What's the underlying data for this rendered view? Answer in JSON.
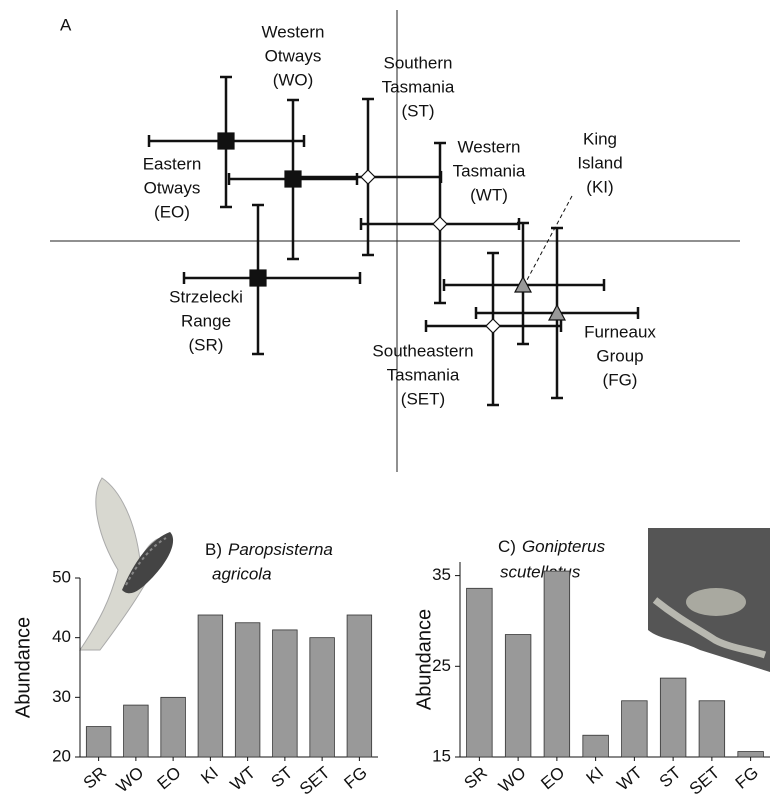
{
  "chart_data": [
    {
      "type": "scatter",
      "panel_label": "A",
      "xlim": [
        -3.47,
        3.43
      ],
      "ylim": [
        -2.31,
        2.31
      ],
      "points": [
        {
          "label_lines": [
            "Eastern",
            "Otways",
            "(EO)"
          ],
          "x": -1.71,
          "y": 1.0,
          "x_low": -2.48,
          "x_high": -0.93,
          "y_low": 0.34,
          "y_high": 1.64,
          "marker": "square",
          "color": "#111111"
        },
        {
          "label_lines": [
            "Western",
            "Otways",
            "(WO)"
          ],
          "x": -1.04,
          "y": 0.62,
          "x_low": -1.68,
          "x_high": -0.4,
          "y_low": -0.18,
          "y_high": 1.41,
          "marker": "square",
          "color": "#111111"
        },
        {
          "label_lines": [
            "Strzelecki",
            "Range",
            "(SR)"
          ],
          "x": -1.39,
          "y": -0.37,
          "x_low": -2.13,
          "x_high": -0.37,
          "y_low": -1.13,
          "y_high": 0.36,
          "marker": "square",
          "color": "#111111"
        },
        {
          "label_lines": [
            "Southern",
            "Tasmania",
            "(ST)"
          ],
          "x": -0.29,
          "y": 0.64,
          "x_low": -1.01,
          "x_high": 0.44,
          "y_low": -0.14,
          "y_high": 1.42,
          "marker": "diamond",
          "color": "#ffffff"
        },
        {
          "label_lines": [
            "Western",
            "Tasmania",
            "(WT)"
          ],
          "x": 0.43,
          "y": 0.17,
          "x_low": -0.36,
          "x_high": 1.22,
          "y_low": -0.62,
          "y_high": 0.98,
          "marker": "diamond",
          "color": "#ffffff"
        },
        {
          "label_lines": [
            "King",
            "Island",
            "(KI)"
          ],
          "x": 1.26,
          "y": -0.44,
          "x_low": 0.47,
          "x_high": 2.07,
          "y_low": -1.03,
          "y_high": 0.18,
          "marker": "triangle",
          "color": "#999999"
        },
        {
          "label_lines": [
            "Furneaux",
            "Group",
            "(FG)"
          ],
          "x": 1.6,
          "y": -0.72,
          "x_low": 0.79,
          "x_high": 2.41,
          "y_low": -1.57,
          "y_high": 0.13,
          "marker": "triangle",
          "color": "#999999"
        },
        {
          "label_lines": [
            "Southeastern",
            "Tasmania",
            "(SET)"
          ],
          "x": 0.96,
          "y": -0.85,
          "x_low": 0.29,
          "x_high": 1.64,
          "y_low": -1.64,
          "y_high": -0.12,
          "marker": "diamond",
          "color": "#ffffff"
        }
      ]
    },
    {
      "type": "bar",
      "panel_label": "B)",
      "title_lines": [
        "Paropsisterna",
        "agricola"
      ],
      "y_label": "Abundance",
      "categories": [
        "SR",
        "WO",
        "EO",
        "KI",
        "WT",
        "ST",
        "SET",
        "FG"
      ],
      "values": [
        25.1,
        28.7,
        30.0,
        43.8,
        42.5,
        41.3,
        40.0,
        43.8
      ],
      "color": "#999999",
      "ylim": [
        20,
        50
      ],
      "yticks": [
        20,
        30,
        40,
        50
      ]
    },
    {
      "type": "bar",
      "panel_label": "C)",
      "title_lines": [
        "Gonipterus",
        "scutellatus"
      ],
      "y_label": "Abundance",
      "categories": [
        "SR",
        "WO",
        "EO",
        "KI",
        "WT",
        "ST",
        "SET",
        "FG"
      ],
      "values": [
        33.6,
        28.5,
        35.5,
        17.4,
        21.2,
        23.7,
        21.2,
        15.6
      ],
      "color": "#999999",
      "ylim": [
        15,
        36.5
      ],
      "yticks": [
        15,
        25,
        35
      ]
    }
  ]
}
